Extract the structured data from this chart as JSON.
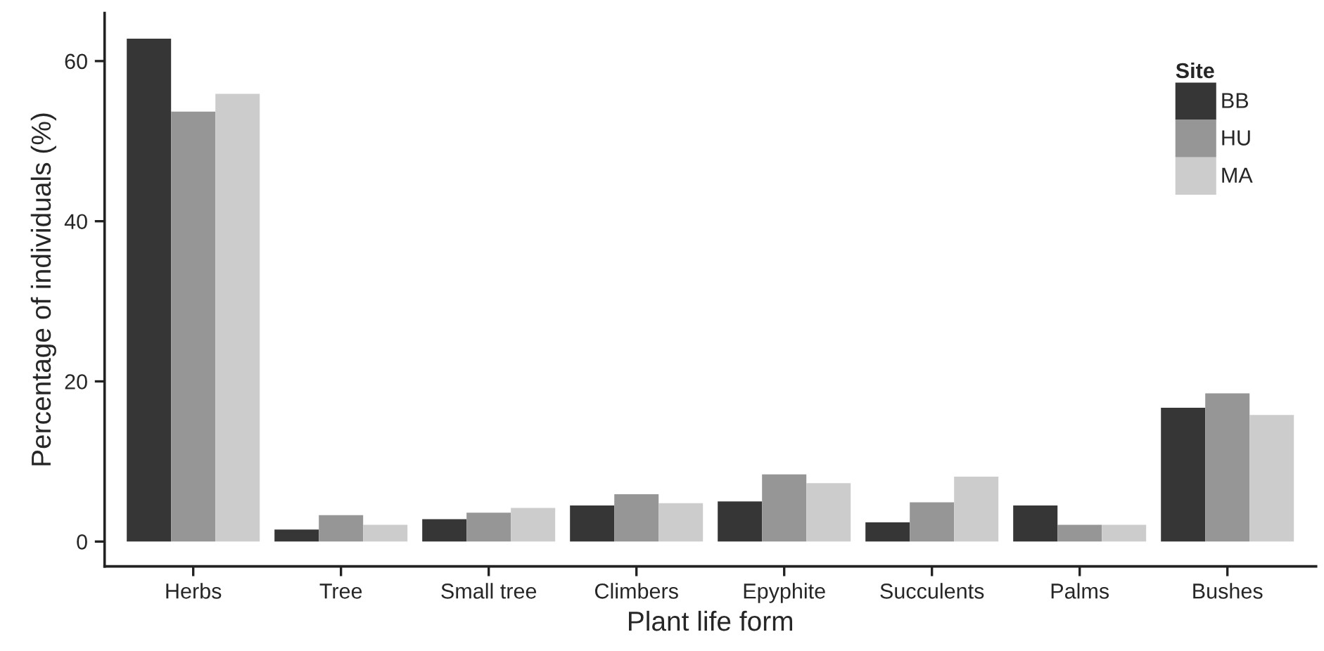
{
  "chart_data": {
    "type": "bar",
    "xlabel": "Plant life form",
    "ylabel": "Percentage of individuals (%)",
    "legend_title": "Site",
    "categories": [
      "Herbs",
      "Tree",
      "Small tree",
      "Climbers",
      "Epyphite",
      "Succulents",
      "Palms",
      "Bushes"
    ],
    "series": [
      {
        "name": "BB",
        "color": "#363636",
        "values": [
          62.8,
          1.5,
          2.8,
          4.5,
          5.0,
          2.4,
          4.5,
          16.7
        ]
      },
      {
        "name": "HU",
        "color": "#969696",
        "values": [
          53.7,
          3.3,
          3.6,
          5.9,
          8.4,
          4.9,
          2.1,
          18.5
        ]
      },
      {
        "name": "MA",
        "color": "#cccccc",
        "values": [
          55.9,
          2.1,
          4.2,
          4.8,
          7.3,
          8.1,
          2.1,
          15.8
        ]
      }
    ],
    "ylim": [
      -3.1,
      66
    ],
    "yticks": [
      0,
      20,
      40,
      60
    ],
    "grid": false,
    "legend": "top right"
  }
}
